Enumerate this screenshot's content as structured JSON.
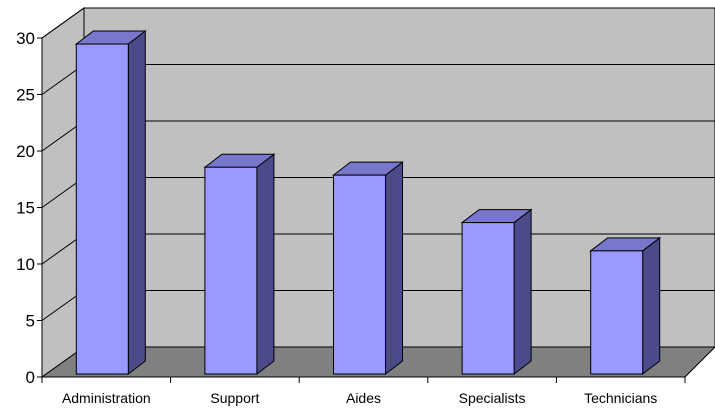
{
  "chart_data": {
    "type": "bar",
    "categories": [
      "Administration",
      "Support",
      "Aides",
      "Specialists",
      "Technicians"
    ],
    "values": [
      29.2,
      18.3,
      17.6,
      13.4,
      10.9
    ],
    "ylim": [
      0,
      30
    ],
    "yticks": [
      0,
      5,
      10,
      15,
      20,
      25,
      30
    ],
    "grid": true,
    "legend": "none",
    "colors": {
      "bar_front": "#9999ff",
      "bar_side": "#4b4b8c",
      "bar_top": "#7777cc",
      "wall": "#c0c0c0",
      "floor": "#808080",
      "outline": "#000000"
    }
  }
}
